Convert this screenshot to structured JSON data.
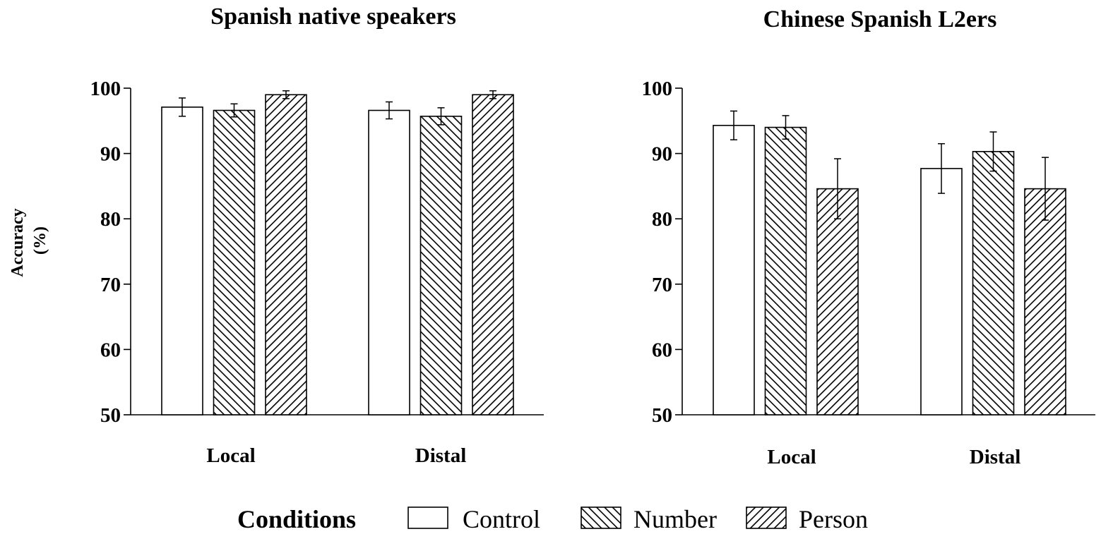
{
  "legend": {
    "title": "Conditions",
    "items": [
      {
        "name": "Control",
        "pattern": "none"
      },
      {
        "name": "Number",
        "pattern": "hatch-back"
      },
      {
        "name": "Person",
        "pattern": "hatch-forward"
      }
    ]
  },
  "y_label_lines": [
    "Accuracy",
    "(%)"
  ],
  "chart_data": [
    {
      "type": "bar",
      "title": "Spanish native speakers",
      "ylabel": "Accuracy (%)",
      "ylim": [
        50,
        100
      ],
      "yticks": [
        50,
        60,
        70,
        80,
        90,
        100
      ],
      "categories": [
        "Local",
        "Distal"
      ],
      "error_bars": true,
      "series": [
        {
          "name": "Control",
          "values": [
            97.1,
            96.6
          ],
          "errors": [
            1.4,
            1.3
          ]
        },
        {
          "name": "Number",
          "values": [
            96.6,
            95.7
          ],
          "errors": [
            1.0,
            1.3
          ]
        },
        {
          "name": "Person",
          "values": [
            99.0,
            99.0
          ],
          "errors": [
            0.6,
            0.6
          ]
        }
      ]
    },
    {
      "type": "bar",
      "title": "Chinese Spanish L2ers",
      "ylabel": "Accuracy (%)",
      "ylim": [
        50,
        100
      ],
      "yticks": [
        50,
        60,
        70,
        80,
        90,
        100
      ],
      "categories": [
        "Local",
        "Distal"
      ],
      "error_bars": true,
      "series": [
        {
          "name": "Control",
          "values": [
            94.3,
            87.7
          ],
          "errors": [
            2.2,
            3.8
          ]
        },
        {
          "name": "Number",
          "values": [
            94.0,
            90.3
          ],
          "errors": [
            1.8,
            3.0
          ]
        },
        {
          "name": "Person",
          "values": [
            84.6,
            84.6
          ],
          "errors": [
            4.6,
            4.8
          ]
        }
      ]
    }
  ]
}
